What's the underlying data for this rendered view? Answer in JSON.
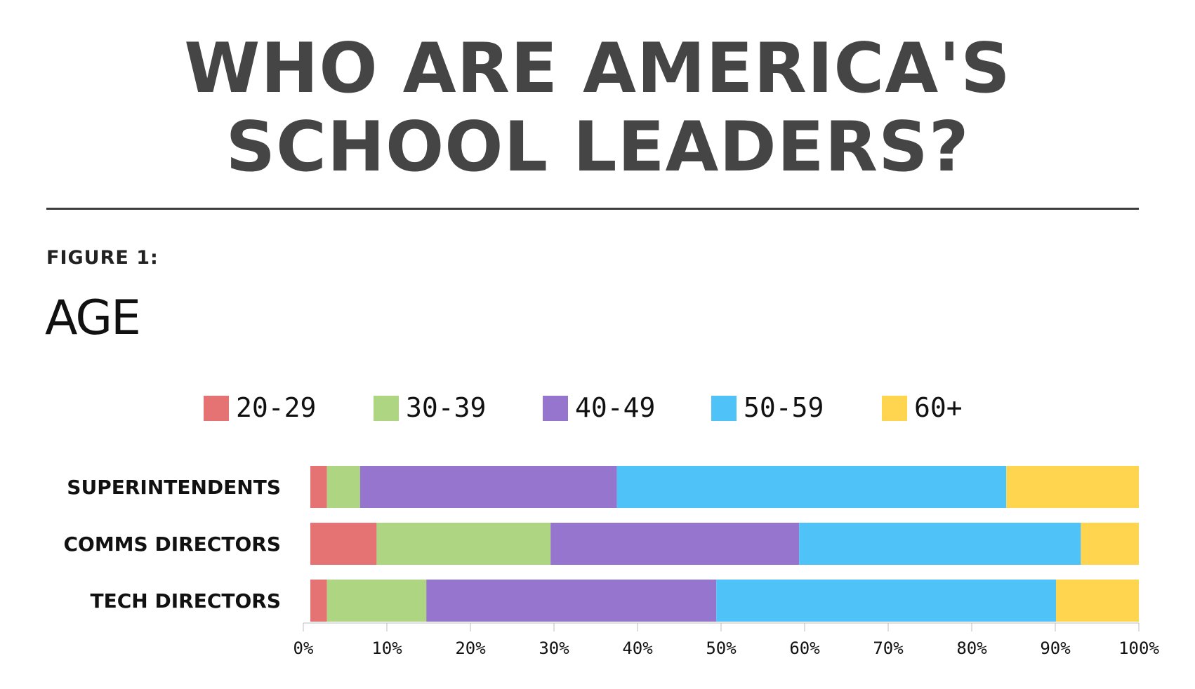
{
  "header": {
    "title_line1": "WHO ARE AMERICA'S",
    "title_line2": "SCHOOL LEADERS?"
  },
  "figure": {
    "label": "FIGURE 1:",
    "title": "AGE"
  },
  "chart_data": {
    "type": "bar",
    "orientation": "horizontal",
    "stacked": true,
    "categories": [
      "SUPERINTENDENTS",
      "COMMS DIRECTORS",
      "TECH DIRECTORS"
    ],
    "series": [
      {
        "name": "20-29",
        "color": "#e57373",
        "values": [
          2,
          8,
          2
        ]
      },
      {
        "name": "30-39",
        "color": "#aed581",
        "values": [
          4,
          21,
          12
        ]
      },
      {
        "name": "40-49",
        "color": "#9575cd",
        "values": [
          31,
          30,
          35
        ]
      },
      {
        "name": "50-59",
        "color": "#4fc3f7",
        "values": [
          47,
          34,
          41
        ]
      },
      {
        "name": "60+",
        "color": "#ffd54f",
        "values": [
          16,
          7,
          10
        ]
      }
    ],
    "xlim": [
      0,
      100
    ],
    "x_ticks": [
      "0%",
      "10%",
      "20%",
      "30%",
      "40%",
      "50%",
      "60%",
      "70%",
      "80%",
      "90%",
      "100%"
    ],
    "legend_position": "top",
    "grid": false
  }
}
